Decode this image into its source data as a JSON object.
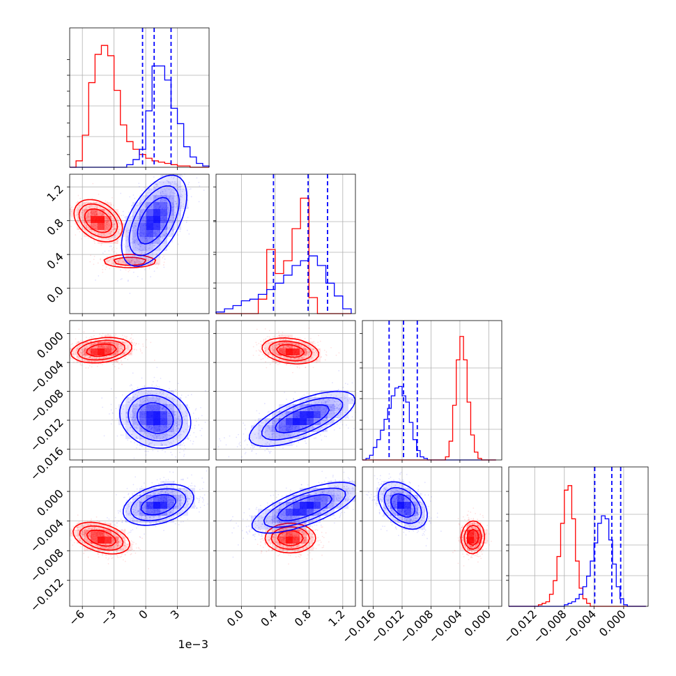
{
  "chart_data": {
    "type": "corner",
    "n_params": 4,
    "colors": {
      "series_a": "#ff0000",
      "series_b": "#0000ff",
      "grid": "#b0b0b0",
      "quantile_line": "#0000ff"
    },
    "grid": true,
    "params": [
      {
        "range": [
          -0.0072,
          0.006
        ],
        "ticks": [
          -0.006,
          -0.003,
          0.0,
          0.003
        ],
        "tick_labels": [
          "−6",
          "−3",
          "0",
          "3"
        ],
        "offset_label": "1e−3"
      },
      {
        "range": [
          -0.3,
          1.35
        ],
        "ticks": [
          0.0,
          0.4,
          0.8,
          1.2
        ],
        "tick_labels": [
          "0.0",
          "0.4",
          "0.8",
          "1.2"
        ]
      },
      {
        "range": [
          -0.0175,
          0.0018
        ],
        "ticks": [
          -0.016,
          -0.012,
          -0.008,
          -0.004,
          0.0
        ],
        "tick_labels": [
          "−0.016",
          "−0.012",
          "−0.008",
          "−0.004",
          "0.000"
        ]
      },
      {
        "range": [
          -0.0155,
          0.0033
        ],
        "ticks": [
          -0.012,
          -0.008,
          -0.004,
          0.0
        ],
        "tick_labels": [
          "−0.012",
          "−0.008",
          "−0.004",
          "0.000"
        ]
      }
    ],
    "histograms": [
      {
        "param": 0,
        "bin_edges": [
          -0.0072,
          -0.0066,
          -0.006,
          -0.0054,
          -0.0048,
          -0.0042,
          -0.0036,
          -0.003,
          -0.0024,
          -0.0018,
          -0.0012,
          -0.0006,
          0.0,
          0.0006,
          0.0012,
          0.0018,
          0.0024,
          0.003,
          0.0036,
          0.0042,
          0.0048,
          0.0054,
          0.006
        ],
        "series": [
          {
            "name": "",
            "color": "#ff0000",
            "counts": [
              0,
              5,
              25,
              66,
              88,
              95,
              87,
              60,
              33,
              20,
              14,
              10,
              7,
              5,
              4,
              3,
              2,
              1,
              1,
              0,
              0,
              0
            ]
          },
          {
            "name": "",
            "color": "#0000ff",
            "counts": [
              0,
              0,
              0,
              0,
              0,
              0,
              0,
              0,
              0,
              2,
              6,
              14,
              44,
              79,
              79,
              68,
              46,
              34,
              16,
              8,
              3,
              1
            ]
          }
        ],
        "ymax": 100,
        "quantiles": [
          -0.0003,
          0.0008,
          0.0024
        ]
      },
      {
        "param": 1,
        "bin_edges": [
          -0.3,
          -0.2,
          -0.1,
          0.0,
          0.1,
          0.2,
          0.3,
          0.4,
          0.5,
          0.6,
          0.7,
          0.8,
          0.9,
          1.0,
          1.1,
          1.2,
          1.3
        ],
        "series": [
          {
            "name": "",
            "color": "#ff0000",
            "counts": [
              0,
              0,
              0,
              0,
              0,
              9,
              40,
              25,
              33,
              53,
              72,
              10,
              0,
              0,
              0,
              0
            ]
          },
          {
            "name": "",
            "color": "#0000ff",
            "counts": [
              1,
              3,
              5,
              8,
              9,
              12,
              15,
              19,
              24,
              30,
              33,
              36,
              30,
              19,
              11,
              3
            ]
          }
        ],
        "ymax": 80,
        "quantiles": [
          0.38,
          0.79,
          1.02
        ]
      },
      {
        "param": 2,
        "bin_edges": [
          -0.0175,
          -0.017,
          -0.0165,
          -0.016,
          -0.0155,
          -0.015,
          -0.0145,
          -0.014,
          -0.0135,
          -0.013,
          -0.0125,
          -0.012,
          -0.0115,
          -0.011,
          -0.0105,
          -0.01,
          -0.0095,
          -0.009,
          -0.0085,
          -0.008,
          -0.0075,
          -0.007,
          -0.0065,
          -0.006,
          -0.0055,
          -0.005,
          -0.0045,
          -0.004,
          -0.0035,
          -0.003,
          -0.0025,
          -0.002,
          -0.0015,
          -0.001,
          -0.0005,
          0.0,
          0.0005,
          0.001,
          0.0015
        ],
        "series": [
          {
            "name": "",
            "color": "#0000ff",
            "counts": [
              0,
              1,
              3,
              8,
              13,
              19,
              26,
              33,
              41,
              46,
              47,
              41,
              37,
              24,
              13,
              6,
              2,
              1,
              0,
              0,
              0,
              0,
              0,
              0,
              0,
              0,
              0,
              0,
              0,
              0,
              0,
              0,
              0,
              0,
              0,
              0,
              0
            ]
          },
          {
            "name": "",
            "color": "#ff0000",
            "counts": [
              0,
              0,
              0,
              0,
              0,
              0,
              0,
              0,
              0,
              0,
              0,
              0,
              0,
              0,
              0,
              0,
              0,
              0,
              0,
              0,
              0,
              0,
              0,
              2,
              12,
              35,
              64,
              79,
              64,
              37,
              16,
              5,
              1,
              0,
              0,
              0,
              0
            ]
          }
        ],
        "ymax": 82,
        "quantiles": [
          -0.0138,
          -0.0118,
          -0.0099
        ]
      },
      {
        "param": 3,
        "bin_edges": [
          -0.0155,
          -0.015,
          -0.0145,
          -0.014,
          -0.0135,
          -0.013,
          -0.0125,
          -0.012,
          -0.0115,
          -0.011,
          -0.0105,
          -0.01,
          -0.0095,
          -0.009,
          -0.0085,
          -0.008,
          -0.0075,
          -0.007,
          -0.0065,
          -0.006,
          -0.0055,
          -0.005,
          -0.0045,
          -0.004,
          -0.0035,
          -0.003,
          -0.0025,
          -0.002,
          -0.0015,
          -0.001,
          -0.0005,
          0.0,
          0.0005,
          0.001,
          0.0015,
          0.002,
          0.0025,
          0.003
        ],
        "series": [
          {
            "name": "",
            "color": "#ff0000",
            "counts": [
              0,
              0,
              0,
              0,
              0,
              0,
              0,
              0,
              1,
              2,
              3,
              8,
              17,
              33,
              55,
              77,
              80,
              58,
              30,
              12,
              5,
              2,
              0,
              0,
              0,
              0,
              0,
              0,
              0,
              0,
              0,
              0,
              0,
              0,
              0,
              0,
              0
            ]
          },
          {
            "name": "",
            "color": "#0000ff",
            "counts": [
              0,
              0,
              0,
              0,
              0,
              0,
              0,
              0,
              0,
              0,
              0,
              0,
              0,
              0,
              0,
              1,
              2,
              3,
              5,
              8,
              13,
              20,
              30,
              42,
              55,
              60,
              58,
              44,
              28,
              13,
              5,
              1,
              0,
              0,
              0,
              0,
              0
            ]
          }
        ],
        "ymax": 85,
        "quantiles": [
          -0.0039,
          -0.0016,
          -0.0004
        ]
      }
    ],
    "pairs": [
      {
        "x_param": 0,
        "y_param": 1,
        "series": [
          {
            "name": "",
            "color": "#ff0000",
            "mode": [
              -0.0045,
              0.82
            ],
            "spread": [
              0.0009,
              0.1
            ],
            "tilt": -0.3,
            "mass": [
              {
                "x": -0.0045,
                "y": 0.8,
                "sx": 0.0011,
                "sy": 0.12,
                "rho": -0.35,
                "w": 0.8
              },
              {
                "x": -0.0015,
                "y": 0.32,
                "sx": 0.0015,
                "sy": 0.045,
                "rho": 0.0,
                "w": 0.2
              }
            ]
          },
          {
            "name": "",
            "color": "#0000ff",
            "mode": [
              0.0008,
              0.88
            ],
            "spread": [
              0.0014,
              0.26
            ],
            "tilt": 0.55,
            "mass": [
              {
                "x": 0.0008,
                "y": 0.8,
                "sx": 0.0016,
                "sy": 0.28,
                "rho": 0.55,
                "w": 1.0
              }
            ]
          }
        ]
      },
      {
        "x_param": 0,
        "y_param": 2,
        "series": [
          {
            "name": "",
            "color": "#ff0000",
            "mode": [
              -0.0045,
              -0.0023
            ],
            "spread": [
              0.0012,
              0.0008
            ],
            "tilt": 0.2,
            "mass": [
              {
                "x": -0.0042,
                "y": -0.0023,
                "sx": 0.0015,
                "sy": 0.0009,
                "rho": 0.25,
                "w": 1.0
              }
            ]
          },
          {
            "name": "",
            "color": "#0000ff",
            "mode": [
              0.0008,
              -0.0118
            ],
            "spread": [
              0.0016,
              0.0019
            ],
            "tilt": -0.15,
            "mass": [
              {
                "x": 0.0009,
                "y": -0.0117,
                "sx": 0.0017,
                "sy": 0.0021,
                "rho": -0.15,
                "w": 1.0
              }
            ]
          }
        ]
      },
      {
        "x_param": 1,
        "y_param": 2,
        "series": [
          {
            "name": "",
            "color": "#ff0000",
            "mode": [
              0.72,
              -0.0026
            ],
            "spread": [
              0.16,
              0.0009
            ],
            "tilt": -0.25,
            "mass": [
              {
                "x": 0.58,
                "y": -0.0024,
                "sx": 0.17,
                "sy": 0.0009,
                "rho": -0.25,
                "w": 1.0
              }
            ]
          },
          {
            "name": "",
            "color": "#0000ff",
            "mode": [
              0.95,
              -0.0112
            ],
            "spread": [
              0.27,
              0.0017
            ],
            "tilt": 0.65,
            "mass": [
              {
                "x": 0.72,
                "y": -0.0118,
                "sx": 0.33,
                "sy": 0.002,
                "rho": 0.68,
                "w": 1.0
              }
            ]
          }
        ]
      },
      {
        "x_param": 0,
        "y_param": 3,
        "series": [
          {
            "name": "",
            "color": "#ff0000",
            "mode": [
              -0.0045,
              -0.0061
            ],
            "spread": [
              0.0012,
              0.0009
            ],
            "tilt": -0.35,
            "mass": [
              {
                "x": -0.0042,
                "y": -0.0063,
                "sx": 0.0014,
                "sy": 0.0011,
                "rho": -0.4,
                "w": 1.0
              }
            ]
          },
          {
            "name": "",
            "color": "#0000ff",
            "mode": [
              0.0008,
              -0.0017
            ],
            "spread": [
              0.0015,
              0.0013
            ],
            "tilt": 0.35,
            "mass": [
              {
                "x": 0.0012,
                "y": -0.0018,
                "sx": 0.0017,
                "sy": 0.0014,
                "rho": 0.35,
                "w": 1.0
              }
            ]
          }
        ]
      },
      {
        "x_param": 1,
        "y_param": 3,
        "series": [
          {
            "name": "",
            "color": "#ff0000",
            "mode": [
              0.7,
              -0.0062
            ],
            "spread": [
              0.14,
              0.0009
            ],
            "tilt": 0.0,
            "mass": [
              {
                "x": 0.58,
                "y": -0.0063,
                "sx": 0.15,
                "sy": 0.001,
                "rho": 0.0,
                "w": 1.0
              }
            ]
          },
          {
            "name": "",
            "color": "#0000ff",
            "mode": [
              0.9,
              -0.0015
            ],
            "spread": [
              0.28,
              0.0015
            ],
            "tilt": 0.65,
            "mass": [
              {
                "x": 0.75,
                "y": -0.0022,
                "sx": 0.33,
                "sy": 0.0018,
                "rho": 0.7,
                "w": 1.0
              }
            ]
          }
        ]
      },
      {
        "x_param": 2,
        "y_param": 3,
        "series": [
          {
            "name": "",
            "color": "#ff0000",
            "mode": [
              -0.0022,
              -0.0061
            ],
            "spread": [
              0.0007,
              0.001
            ],
            "tilt": 0.0,
            "mass": [
              {
                "x": -0.0022,
                "y": -0.0062,
                "sx": 0.0008,
                "sy": 0.0011,
                "rho": 0.05,
                "w": 1.0
              }
            ]
          },
          {
            "name": "",
            "color": "#0000ff",
            "mode": [
              -0.0115,
              -0.0015
            ],
            "spread": [
              0.0016,
              0.0014
            ],
            "tilt": -0.4,
            "mass": [
              {
                "x": -0.0119,
                "y": -0.0019,
                "sx": 0.0017,
                "sy": 0.0016,
                "rho": -0.4,
                "w": 1.0
              }
            ]
          }
        ]
      }
    ]
  }
}
